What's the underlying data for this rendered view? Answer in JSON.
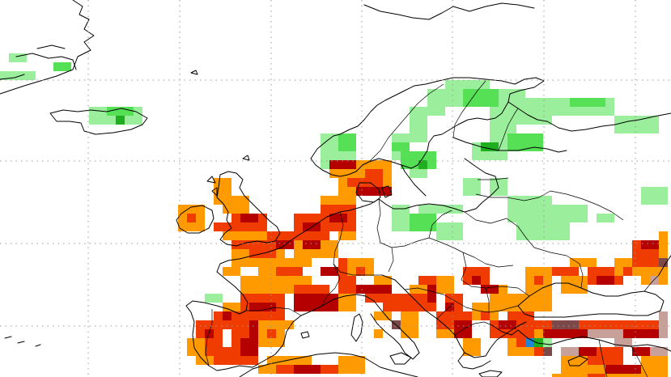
{
  "map": {
    "grid": "on",
    "coastlines": "on",
    "country_borders": "on",
    "palette": {
      "light_green": "#9bee9b",
      "medium_green": "#55e055",
      "dark_green": "#1fae1f",
      "orange": "#ff9a00",
      "red_orange": "#f03c00",
      "dark_red": "#b50000",
      "brown": "#7c4848",
      "mauve": "#c8a09a",
      "blue": "#1f86d6"
    }
  }
}
